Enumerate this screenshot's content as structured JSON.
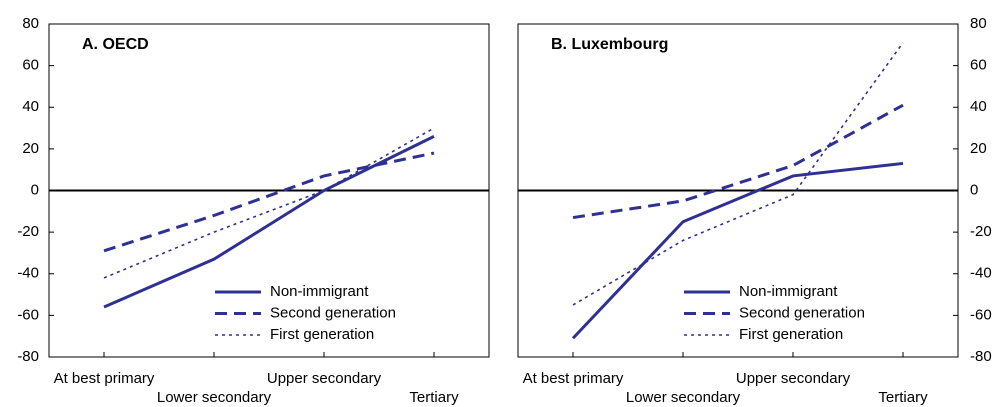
{
  "chart_data": [
    {
      "type": "line",
      "title": "A. OECD",
      "axis_side": "left",
      "zero_line": true,
      "categories": [
        "At best primary",
        "Lower secondary",
        "Upper secondary",
        "Tertiary"
      ],
      "ylim": [
        -80,
        80
      ],
      "yticks": [
        -80,
        -60,
        -40,
        -20,
        0,
        20,
        40,
        60,
        80
      ],
      "series": [
        {
          "name": "Non-immigrant",
          "color": "#2e3192",
          "style": "solid",
          "values": [
            -56,
            -33,
            0,
            26
          ]
        },
        {
          "name": "Second generation",
          "color": "#2e3192",
          "style": "dashed",
          "values": [
            -29,
            -12,
            7,
            18
          ]
        },
        {
          "name": "First generation",
          "color": "#2e3192",
          "style": "dotted",
          "values": [
            -42,
            -20,
            0,
            30
          ]
        }
      ]
    },
    {
      "type": "line",
      "title": "B. Luxembourg",
      "axis_side": "right",
      "zero_line": true,
      "categories": [
        "At best primary",
        "Lower secondary",
        "Upper secondary",
        "Tertiary"
      ],
      "ylim": [
        -80,
        80
      ],
      "yticks": [
        -80,
        -60,
        -40,
        -20,
        0,
        20,
        40,
        60,
        80
      ],
      "series": [
        {
          "name": "Non-immigrant",
          "color": "#2e3192",
          "style": "solid",
          "values": [
            -71,
            -15,
            7,
            13
          ]
        },
        {
          "name": "Second generation",
          "color": "#2e3192",
          "style": "dashed",
          "values": [
            -13,
            -5,
            12,
            41
          ]
        },
        {
          "name": "First generation",
          "color": "#2e3192",
          "style": "dotted",
          "values": [
            -55,
            -24,
            -2,
            71
          ]
        }
      ]
    }
  ]
}
